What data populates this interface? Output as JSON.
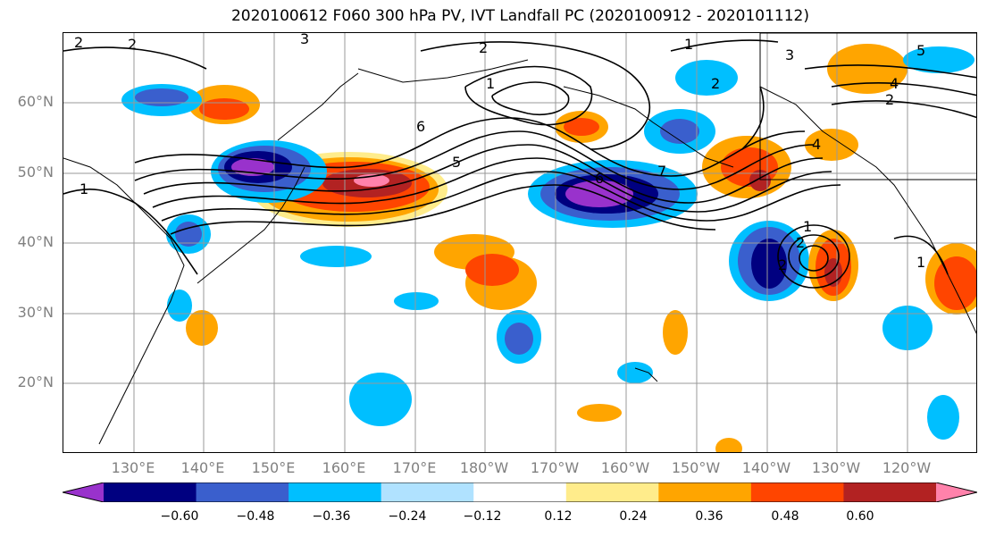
{
  "title": "2020100612 F060 300 hPa PV, IVT Landfall PC (2020100912 - 2020101112)",
  "map": {
    "lat_labels": [
      {
        "text": "60°N",
        "lat": 60
      },
      {
        "text": "50°N",
        "lat": 50
      },
      {
        "text": "40°N",
        "lat": 40
      },
      {
        "text": "30°N",
        "lat": 30
      },
      {
        "text": "20°N",
        "lat": 20
      }
    ],
    "lon_labels": [
      {
        "text": "130°E",
        "lon": 130
      },
      {
        "text": "140°E",
        "lon": 140
      },
      {
        "text": "150°E",
        "lon": 150
      },
      {
        "text": "160°E",
        "lon": 160
      },
      {
        "text": "170°E",
        "lon": 170
      },
      {
        "text": "180°W",
        "lon": 180
      },
      {
        "text": "170°W",
        "lon": 190
      },
      {
        "text": "160°W",
        "lon": 200
      },
      {
        "text": "150°W",
        "lon": 210
      },
      {
        "text": "140°W",
        "lon": 220
      },
      {
        "text": "130°W",
        "lon": 230
      },
      {
        "text": "120°W",
        "lon": 240
      }
    ],
    "extent": {
      "lon_min": 120,
      "lon_max": 250,
      "lat_min": 10,
      "lat_max": 70
    },
    "grid": true,
    "contour_labels": [
      "2",
      "3",
      "2",
      "1",
      "2",
      "6",
      "5",
      "6",
      "7",
      "1",
      "2",
      "1",
      "2",
      "3",
      "4",
      "5",
      "2",
      "4",
      "1",
      "1",
      "2"
    ]
  },
  "colorbar": {
    "colors": [
      "#9932cc",
      "#000080",
      "#3a5fcd",
      "#00bfff",
      "#b0e2ff",
      "#ffffff",
      "#ffec8b",
      "#ffa500",
      "#ff4500",
      "#b22222",
      "#ff82ab"
    ],
    "ticks": [
      "−0.60",
      "−0.48",
      "−0.36",
      "−0.24",
      "−0.12",
      "0.12",
      "0.24",
      "0.36",
      "0.48",
      "0.60"
    ]
  }
}
